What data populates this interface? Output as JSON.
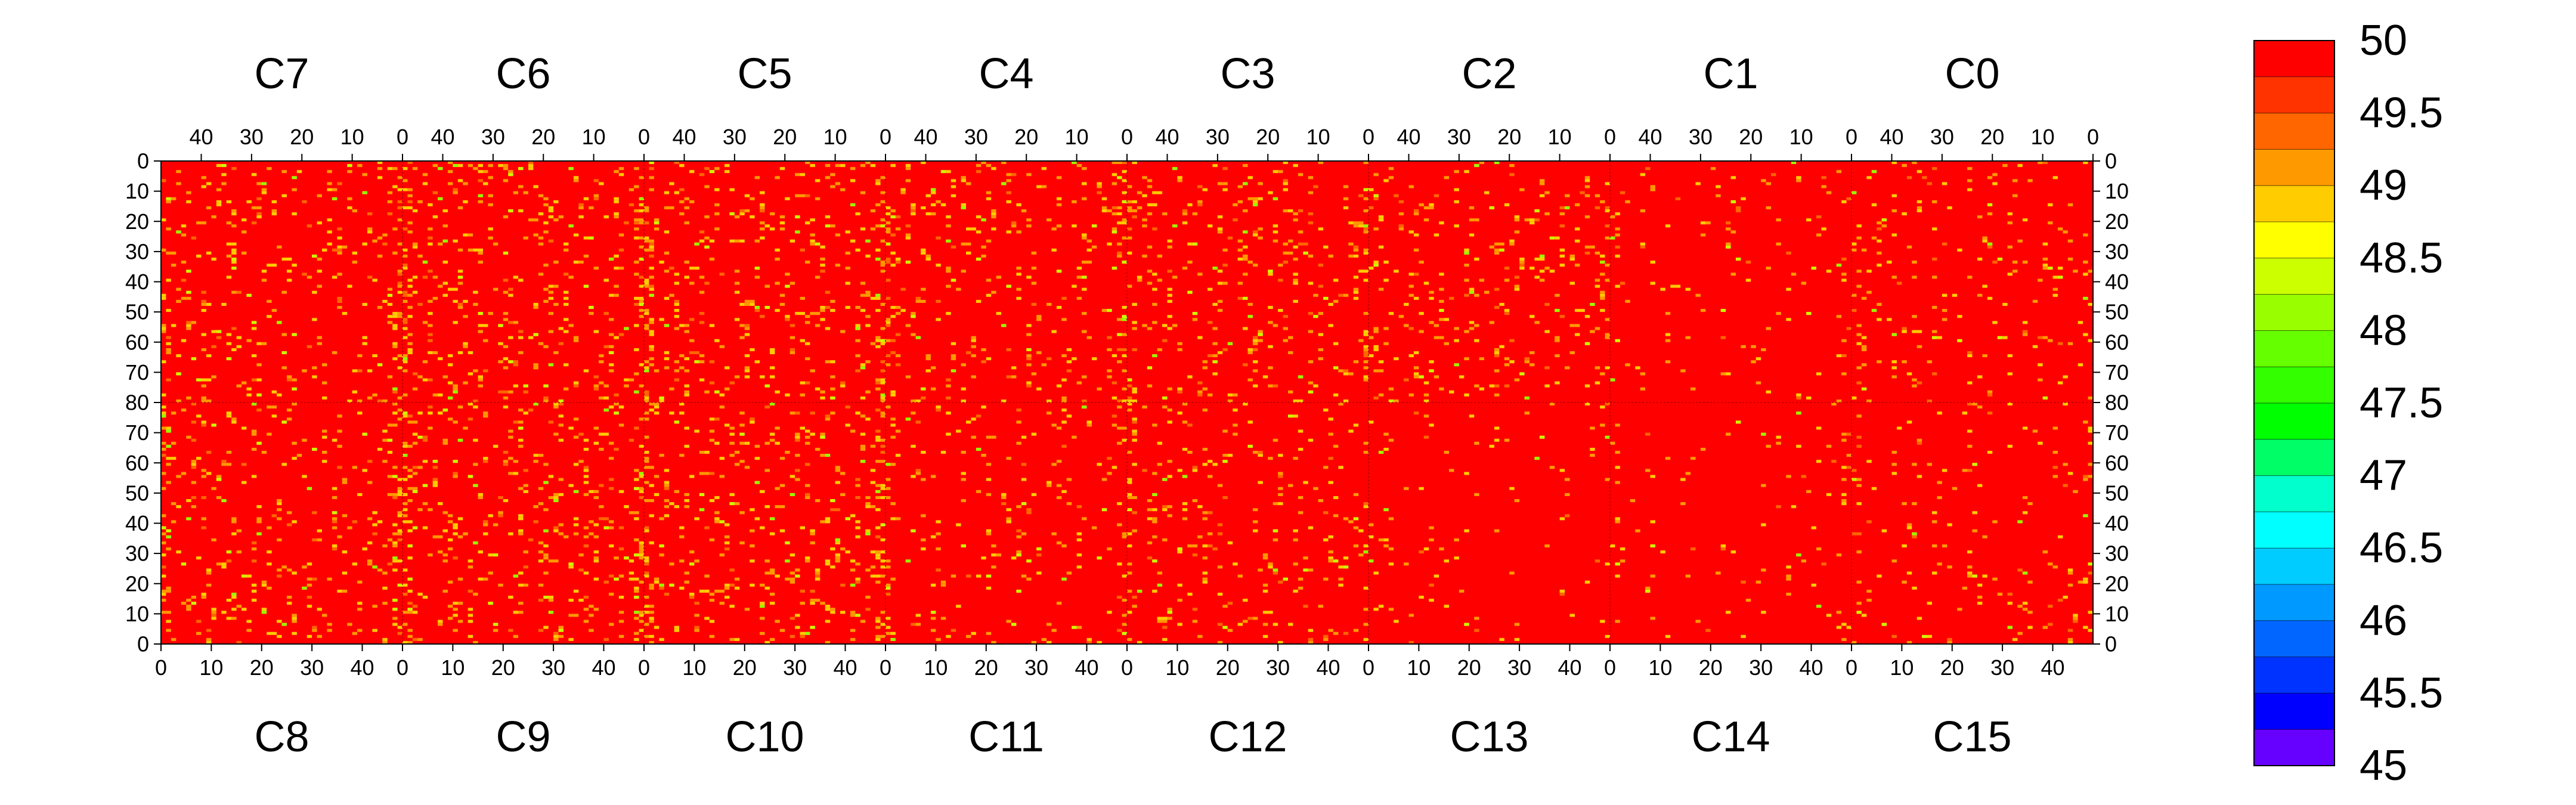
{
  "chart_data": {
    "type": "heatmap",
    "title": "",
    "xlabel": "",
    "ylabel": "",
    "top_chips": [
      "C7",
      "C6",
      "C5",
      "C4",
      "C3",
      "C2",
      "C1",
      "C0"
    ],
    "bottom_chips": [
      "C8",
      "C9",
      "C10",
      "C11",
      "C12",
      "C13",
      "C14",
      "C15"
    ],
    "x_range_per_chip": [
      0,
      48
    ],
    "x_top_tick_labels": [
      "40",
      "30",
      "20",
      "10",
      "0"
    ],
    "x_bottom_tick_labels": [
      "0",
      "10",
      "20",
      "30",
      "40"
    ],
    "y_top_half_range": [
      0,
      80
    ],
    "y_bottom_half_range": [
      0,
      80
    ],
    "y_tick_labels_top_half": [
      "0",
      "10",
      "20",
      "30",
      "40",
      "50",
      "60",
      "70",
      "80"
    ],
    "y_tick_labels_bottom_half": [
      "70",
      "60",
      "50",
      "40",
      "30",
      "20",
      "10",
      "0"
    ],
    "background_value": 50,
    "pixel_density_estimate": {
      "C7": 0.07,
      "C6": 0.08,
      "C5": 0.08,
      "C4": 0.07,
      "C3": 0.07,
      "C2": 0.06,
      "C1": 0.03,
      "C0": 0.04,
      "C8": 0.07,
      "C9": 0.08,
      "C10": 0.08,
      "C11": 0.05,
      "C12": 0.05,
      "C13": 0.02,
      "C14": 0.02,
      "C15": 0.03
    },
    "colorbar": {
      "min": 45,
      "max": 50,
      "levels": 20,
      "tick_labels": [
        "50",
        "49.5",
        "49",
        "48.5",
        "48",
        "47.5",
        "47",
        "46.5",
        "46",
        "45.5",
        "45"
      ],
      "colors": [
        "#ff0000",
        "#ff3300",
        "#ff6600",
        "#ff9900",
        "#ffcc00",
        "#ffff00",
        "#ccff00",
        "#99ff00",
        "#66ff00",
        "#33ff00",
        "#00ff00",
        "#00ff66",
        "#00ffcc",
        "#00ffff",
        "#00ccff",
        "#0099ff",
        "#0066ff",
        "#0033ff",
        "#0000ff",
        "#6600ff"
      ]
    }
  }
}
